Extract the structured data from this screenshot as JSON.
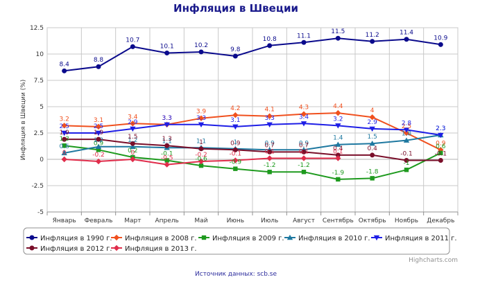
{
  "chart_data": {
    "type": "line",
    "title": "Инфляция в Швеции",
    "ylabel": "Инфляция в Швеции (%)",
    "xlabel": "",
    "ylim": [
      -5,
      12.5
    ],
    "yticks": [
      -5,
      -2.5,
      0,
      2.5,
      5,
      7.5,
      10,
      12.5
    ],
    "ytick_labels": [
      "-5",
      "-2.5",
      "0",
      "2.5",
      "5",
      "7.5",
      "10",
      "12.5"
    ],
    "grid": true,
    "legend_position": "bottom",
    "categories": [
      "Январь",
      "Февраль",
      "Март",
      "Апрель",
      "Май",
      "Июнь",
      "Июль",
      "Август",
      "Сентябрь",
      "Октябрь",
      "Ноябрь",
      "Декабрь"
    ],
    "series": [
      {
        "name": "Инфляция в 1990 г.",
        "color": "#0a0a8c",
        "marker": "circle",
        "values": [
          8.4,
          8.8,
          10.7,
          10.1,
          10.2,
          9.8,
          10.8,
          11.1,
          11.5,
          11.2,
          11.4,
          10.9
        ],
        "labels": [
          "8.4",
          "8.8",
          "10.7",
          "10.1",
          "10.2",
          "9.8",
          "10.8",
          "11.1",
          "11.5",
          "11.2",
          "11.4",
          "10.9"
        ]
      },
      {
        "name": "Инфляция в 2008 г.",
        "color": "#f0501e",
        "marker": "diamond",
        "values": [
          3.2,
          3.1,
          3.4,
          3.3,
          3.9,
          4.2,
          4.1,
          4.3,
          4.4,
          4.0,
          2.5,
          0.9
        ],
        "labels": [
          "3.2",
          "3.1",
          "3.4",
          "3.3",
          "3.9",
          "4.2",
          "4.1",
          "4.3",
          "4.4",
          "4",
          "2.5",
          "0.9"
        ]
      },
      {
        "name": "Инфляция в 2009 г.",
        "color": "#1e9a1e",
        "marker": "square",
        "values": [
          1.3,
          0.9,
          0.2,
          -0.1,
          -0.6,
          -0.9,
          -1.2,
          -1.2,
          -1.9,
          -1.8,
          -1.0,
          0.6
        ],
        "labels": [
          "1.3",
          "0.9",
          "0.2",
          "-0.1",
          "-0.6",
          "-0.9",
          "-1.2",
          "-1.2",
          "-1.9",
          "-1.8",
          "-1",
          "0.6"
        ]
      },
      {
        "name": "Инфляция в 2010 г.",
        "color": "#1e78a0",
        "marker": "triangle",
        "values": [
          0.6,
          1.2,
          1.2,
          1.1,
          1.1,
          1.0,
          0.9,
          0.9,
          1.4,
          1.5,
          1.8,
          2.3
        ],
        "labels": [
          "0.6",
          "1.2",
          "1.2",
          "1.1",
          "1.1",
          "1",
          "0.9",
          "0.9",
          "1.4",
          "1.5",
          "1.8",
          "2.3"
        ]
      },
      {
        "name": "Инфляция в 2011 г.",
        "color": "#1e1ee6",
        "marker": "triangle-down",
        "values": [
          2.5,
          2.5,
          2.9,
          3.3,
          3.3,
          3.1,
          3.3,
          3.4,
          3.2,
          2.9,
          2.8,
          2.3
        ],
        "labels": [
          "2.5",
          "2.5",
          "2.9",
          "3.3",
          "3.3",
          "3.1",
          "3.3",
          "3.4",
          "3.2",
          "2.9",
          "2.8",
          "2.3"
        ]
      },
      {
        "name": "Инфляция в 2012 г.",
        "color": "#7a0f2a",
        "marker": "circle",
        "values": [
          1.9,
          1.9,
          1.5,
          1.3,
          1.0,
          0.9,
          0.7,
          0.7,
          0.4,
          0.4,
          -0.1,
          -0.1
        ],
        "labels": [
          "1.9",
          "1.9",
          "1.5",
          "1.3",
          "1",
          "0.9",
          "0.7",
          "0.7",
          "0.4",
          "0.4",
          "-0.1",
          "-0.1"
        ]
      },
      {
        "name": "Инфляция в 2013 г.",
        "color": "#e02d4b",
        "marker": "diamond",
        "values": [
          0.0,
          -0.2,
          0.0,
          -0.5,
          -0.2,
          -0.1,
          0.1,
          0.1,
          0.1,
          null,
          null,
          null
        ],
        "labels": [
          "0",
          "-0.2",
          "0",
          "-0.5",
          "-0.2",
          "-0.1",
          "0.1",
          "0.1",
          "0.1",
          null,
          null,
          null
        ]
      }
    ]
  },
  "footer": {
    "credit": "Highcharts.com",
    "source": "Источник данных: scb.se"
  }
}
